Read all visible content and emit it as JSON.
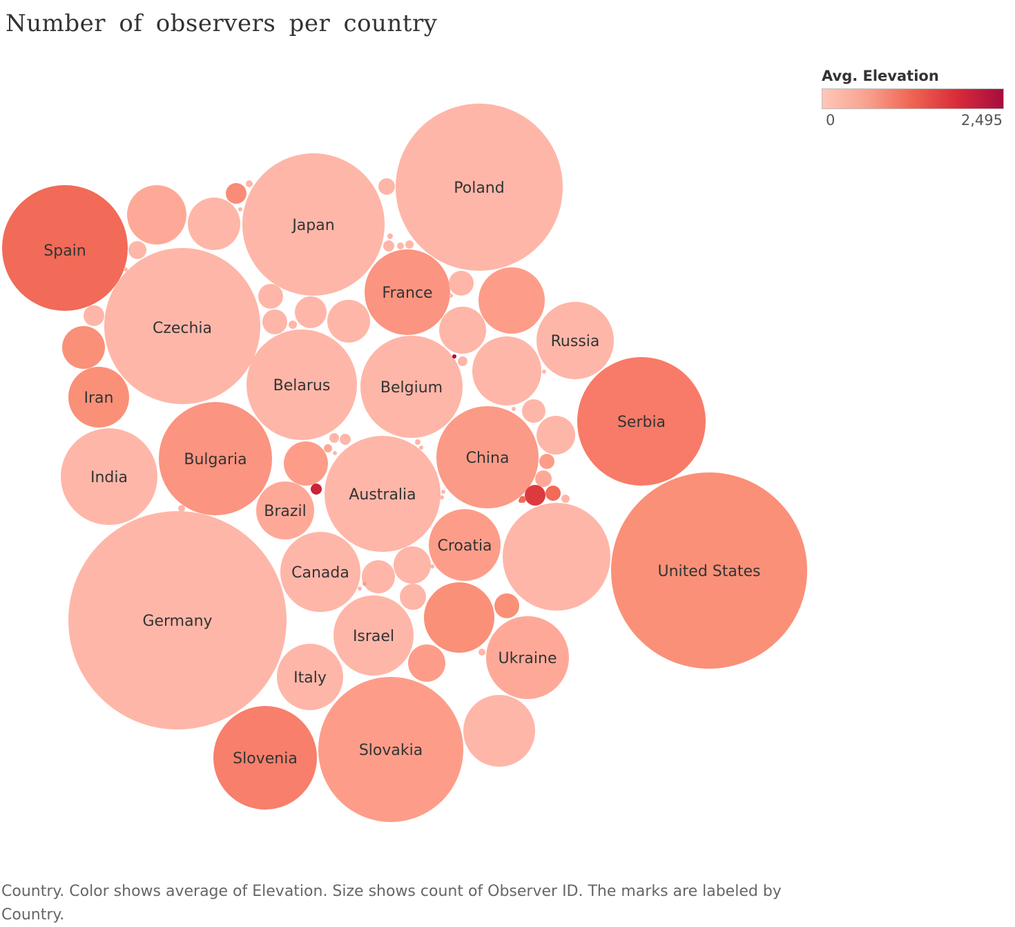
{
  "title": "Number of observers per country",
  "legend": {
    "title": "Avg. Elevation",
    "min_label": "0",
    "max_label": "2,495"
  },
  "caption": "Country.  Color shows average of Elevation.  Size shows count of Observer ID.  The marks are labeled by Country.",
  "chart_data": {
    "type": "packed-bubble",
    "size_measure": "count of Observer ID",
    "color_measure": "average of Elevation",
    "color_scale": {
      "min": 0,
      "max": 2495,
      "colors": [
        "#ffc7b8",
        "#f9a08e",
        "#ee6450",
        "#d92a3a",
        "#a50d3e"
      ]
    },
    "bubbles": [
      {
        "country": "Germany",
        "color": "#feb6a8"
      },
      {
        "country": "United States",
        "color": "#fa9078"
      },
      {
        "country": "Poland",
        "color": "#feb6a8"
      },
      {
        "country": "Czechia",
        "color": "#feb6a8"
      },
      {
        "country": "Japan",
        "color": "#feb6a8"
      },
      {
        "country": "Slovakia",
        "color": "#fd9d89"
      },
      {
        "country": "Serbia",
        "color": "#f77b68"
      },
      {
        "country": "Spain",
        "color": "#f26a58"
      },
      {
        "country": "Australia",
        "color": "#feb6a8"
      },
      {
        "country": "Bulgaria",
        "color": "#fb9480"
      },
      {
        "country": "Belarus",
        "color": "#feb6a8"
      },
      {
        "country": "Belgium",
        "color": "#feb6a8"
      },
      {
        "country": "",
        "color": "#feb6a8"
      },
      {
        "country": "Slovenia",
        "color": "#f77f6c"
      },
      {
        "country": "China",
        "color": "#fb9a86"
      },
      {
        "country": "India",
        "color": "#feb6a8"
      },
      {
        "country": "France",
        "color": "#fb9480"
      },
      {
        "country": "Ukraine",
        "color": "#fea998"
      },
      {
        "country": "Canada",
        "color": "#feb6a8"
      },
      {
        "country": "Israel",
        "color": "#feb6a8"
      },
      {
        "country": "Russia",
        "color": "#feb6a8"
      },
      {
        "country": "Croatia",
        "color": "#fd9d89"
      },
      {
        "country": "",
        "color": "#fa9078"
      },
      {
        "country": "",
        "color": "#fd9d89"
      },
      {
        "country": "",
        "color": "#feb6a8"
      },
      {
        "country": "Italy",
        "color": "#feb6a8"
      },
      {
        "country": "",
        "color": "#feb6a8"
      },
      {
        "country": "Iran",
        "color": "#fa9078"
      },
      {
        "country": "",
        "color": "#fea998"
      },
      {
        "country": "Brazil",
        "color": "#fea998"
      },
      {
        "country": "",
        "color": "#feb6a8"
      },
      {
        "country": "",
        "color": "#feb6a8"
      },
      {
        "country": "",
        "color": "#fd9d89"
      },
      {
        "country": "",
        "color": "#feb6a8"
      },
      {
        "country": "",
        "color": "#feb6a8"
      },
      {
        "country": "",
        "color": "#feb6a8"
      },
      {
        "country": "",
        "color": "#fa9078"
      },
      {
        "country": "",
        "color": "#fd9d89"
      },
      {
        "country": "",
        "color": "#feb6a8"
      },
      {
        "country": "",
        "color": "#feb6a8"
      },
      {
        "country": "",
        "color": "#feb6a8"
      },
      {
        "country": "",
        "color": "#feb6a8"
      },
      {
        "country": "",
        "color": "#feb6a8"
      },
      {
        "country": "",
        "color": "#fa9078"
      },
      {
        "country": "",
        "color": "#feb6a8"
      },
      {
        "country": "",
        "color": "#feb6a8"
      },
      {
        "country": "",
        "color": "#f98c76"
      },
      {
        "country": "",
        "color": "#feb6a8"
      },
      {
        "country": "",
        "color": "#fd9d89"
      },
      {
        "country": "",
        "color": "#feb6a8"
      },
      {
        "country": "",
        "color": "#dc3a3e"
      },
      {
        "country": "",
        "color": "#f26a58"
      },
      {
        "country": "",
        "color": "#feb6a8"
      },
      {
        "country": "",
        "color": "#fea998"
      },
      {
        "country": "",
        "color": "#feb6a8"
      },
      {
        "country": "",
        "color": "#feb6a8"
      },
      {
        "country": "",
        "color": "#fa9078"
      },
      {
        "country": "",
        "color": "#fea998"
      },
      {
        "country": "",
        "color": "#feb6a8"
      },
      {
        "country": "",
        "color": "#feb6a8"
      },
      {
        "country": "",
        "color": "#feb6a8"
      },
      {
        "country": "",
        "color": "#feb6a8"
      },
      {
        "country": "",
        "color": "#feb6a8"
      },
      {
        "country": "",
        "color": "#feb6a8"
      },
      {
        "country": "",
        "color": "#c9233a"
      },
      {
        "country": "",
        "color": "#feb6a8"
      },
      {
        "country": "",
        "color": "#feb6a8"
      },
      {
        "country": "",
        "color": "#feb6a8"
      },
      {
        "country": "",
        "color": "#f26a58"
      },
      {
        "country": "",
        "color": "#a50d3e"
      },
      {
        "country": "",
        "color": "#feb6a8"
      },
      {
        "country": "",
        "color": "#feb6a8"
      },
      {
        "country": "",
        "color": "#feb6a8"
      },
      {
        "country": "",
        "color": "#feb6a8"
      },
      {
        "country": "",
        "color": "#feb6a8"
      },
      {
        "country": "",
        "color": "#feb6a8"
      },
      {
        "country": "",
        "color": "#feb6a8"
      },
      {
        "country": "",
        "color": "#feb6a8"
      },
      {
        "country": "",
        "color": "#feb6a8"
      },
      {
        "country": "",
        "color": "#fd9d89"
      },
      {
        "country": "",
        "color": "#feb6a8"
      },
      {
        "country": "",
        "color": "#feb6a8"
      },
      {
        "country": "",
        "color": "#feb6a8"
      },
      {
        "country": "",
        "color": "#feb6a8"
      },
      {
        "country": "",
        "color": "#feb6a8"
      },
      {
        "country": "",
        "color": "#feb6a8"
      },
      {
        "country": "",
        "color": "#f26a58"
      }
    ]
  }
}
